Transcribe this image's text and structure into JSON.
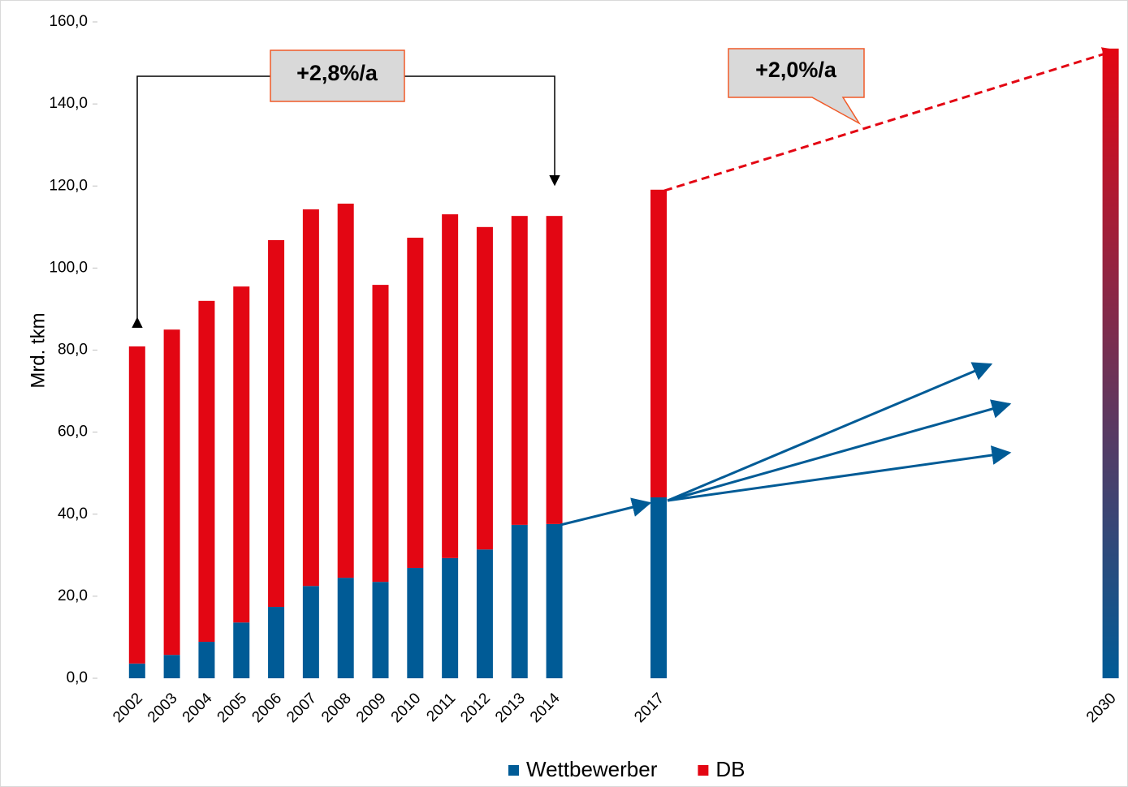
{
  "chart_data": {
    "type": "stacked-bar",
    "y_label": "Mrd. tkm",
    "x": [
      2002,
      2003,
      2004,
      2005,
      2006,
      2007,
      2008,
      2009,
      2010,
      2011,
      2012,
      2013,
      2014,
      2017,
      2030
    ],
    "xlim": [
      2000.86,
      2030.5
    ],
    "ylim": [
      0,
      160
    ],
    "yticks": [
      {
        "value": 0,
        "label": "0,0"
      },
      {
        "value": 20,
        "label": "20,0"
      },
      {
        "value": 40,
        "label": "40,0"
      },
      {
        "value": 60,
        "label": "60,0"
      },
      {
        "value": 80,
        "label": "80,0"
      },
      {
        "value": 100,
        "label": "100,0"
      },
      {
        "value": 120,
        "label": "120,0"
      },
      {
        "value": 140,
        "label": "140,0"
      },
      {
        "value": 160,
        "label": "160,0"
      }
    ],
    "series": [
      {
        "name": "Wettbewerber",
        "color": "#005b96",
        "values": [
          3.6,
          5.7,
          8.9,
          13.6,
          17.4,
          22.5,
          24.5,
          23.5,
          26.9,
          29.3,
          31.4,
          37.4,
          37.6,
          44.1,
          null
        ]
      },
      {
        "name": "DB",
        "color": "#e30613",
        "values": [
          77.3,
          79.3,
          83.1,
          81.9,
          89.4,
          91.8,
          91.2,
          72.4,
          80.5,
          83.8,
          78.6,
          75.3,
          75.1,
          75.0,
          null
        ]
      }
    ],
    "projection": {
      "x": 2030,
      "value": 153.5
    },
    "annotations": [
      "+2,8%/a",
      "+2,0%/a"
    ]
  }
}
